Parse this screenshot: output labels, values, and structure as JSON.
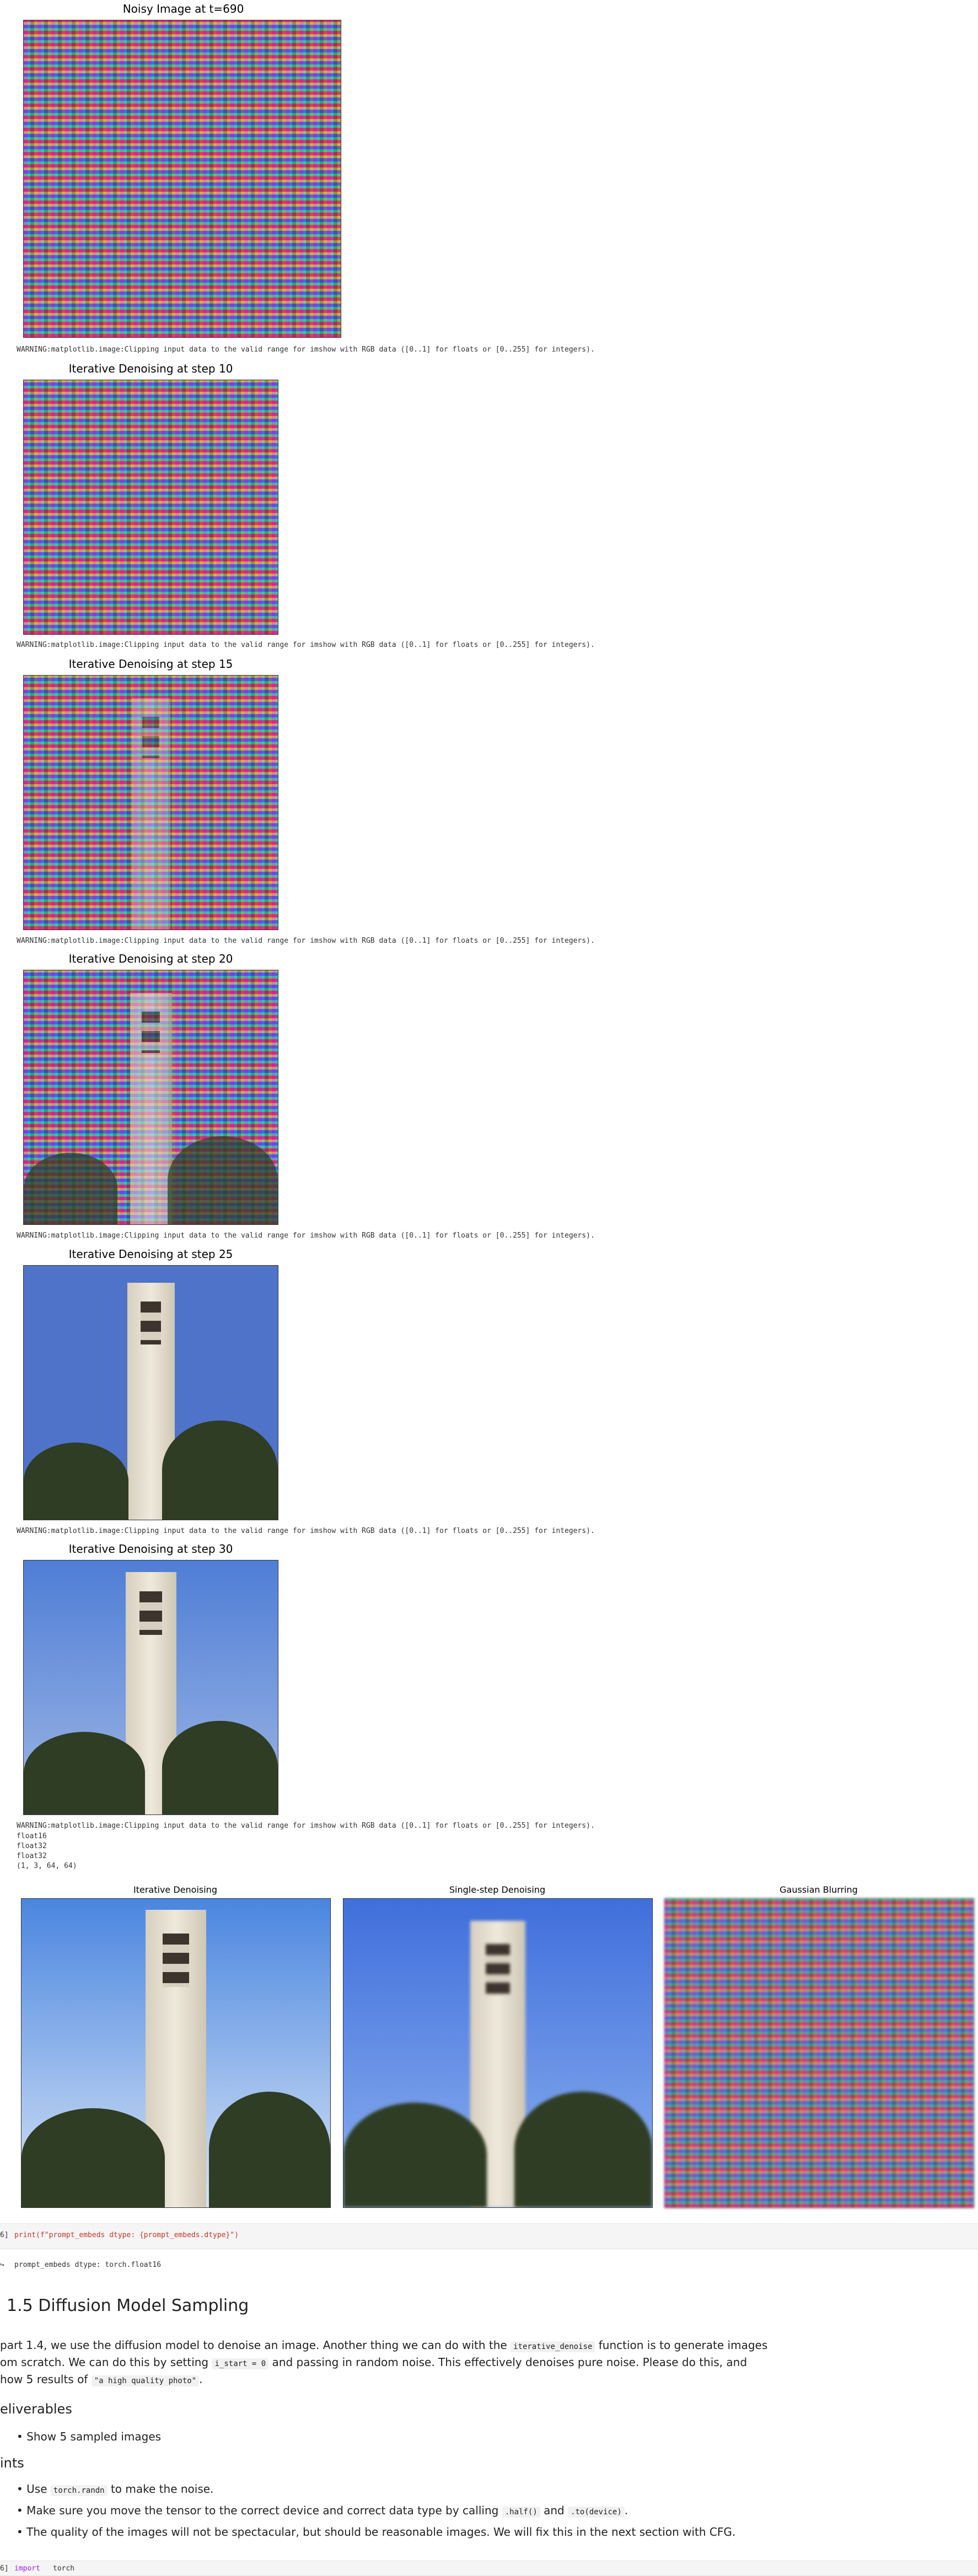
{
  "plots": [
    {
      "title": "Noisy Image at t=690"
    },
    {
      "title": "Iterative Denoising at step 10"
    },
    {
      "title": "Iterative Denoising at step 15"
    },
    {
      "title": "Iterative Denoising at step 20"
    },
    {
      "title": "Iterative Denoising at step 25"
    },
    {
      "title": "Iterative Denoising at step 30"
    }
  ],
  "warning": "WARNING:matplotlib.image:Clipping input data to the valid range for imshow with RGB data ([0..1] for floats or [0..255] for integers).",
  "dtype_lines": [
    "float16",
    "float32",
    "float32",
    "(1, 3, 64, 64)"
  ],
  "comparison": {
    "titles": [
      "Iterative Denoising",
      "Single-step Denoising",
      "Gaussian Blurring"
    ]
  },
  "code": {
    "cell_prefix": "6]",
    "print_text": "print(f\"prompt_embeds  dtype:  {prompt_embeds.dtype}\")",
    "output": "prompt_embeds dtype: torch.float16",
    "next_prefix": "6]",
    "next_import": "import",
    "next_module": "torch"
  },
  "section": {
    "title": "1.5 Diffusion Model Sampling",
    "line1a": " part 1.4, we use the diffusion model to denoise an image. Another thing we can do with the ",
    "line1_code": "iterative_denoise",
    "line1b": " function is to generate images",
    "line2a": "om scratch. We can do this by setting ",
    "line2_code": "i_start = 0",
    "line2b": " and passing in random noise. This effectively denoises pure noise. Please do this, and",
    "line3a": "how 5 results of ",
    "line3_code": "\"a high quality photo\"",
    "line3b": ".",
    "deliverables_heading": "eliverables",
    "deliverable": "Show 5 sampled images",
    "hints_heading": "ints",
    "hint1a": "Use ",
    "hint1_code": "torch.randn",
    "hint1b": " to make the noise.",
    "hint2a": "Make sure you move the tensor to the correct device and correct data type by calling ",
    "hint2_code": ".half()",
    "hint2b": " and ",
    "hint2_code2": ".to(device)",
    "hint2c": ".",
    "hint3": "The quality of the images will not be spectacular, but should be reasonable images. We will fix this in the next section with CFG."
  }
}
